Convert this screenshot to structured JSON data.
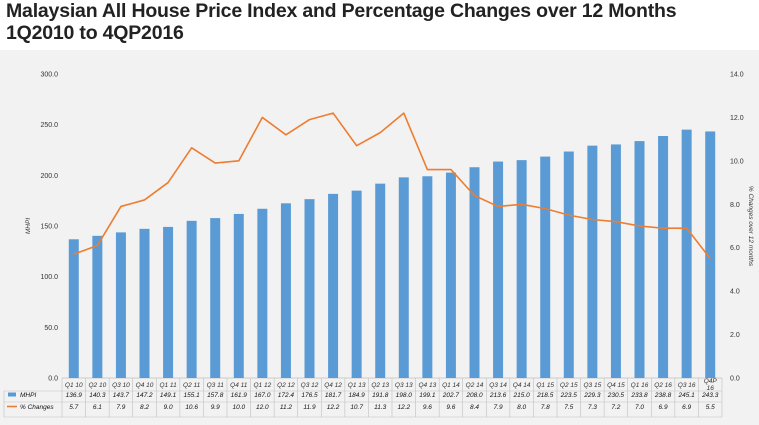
{
  "title_line1": "Malaysian All House Price Index and Percentage Changes over 12 Months",
  "title_line2": "1Q2010 to 4QP2016",
  "chart_data": {
    "type": "bar",
    "categories": [
      "Q1 10",
      "Q2 10",
      "Q3 10",
      "Q4 10",
      "Q1 11",
      "Q2 11",
      "Q3 11",
      "Q4 11",
      "Q1 12",
      "Q2 12",
      "Q3 12",
      "Q4 12",
      "Q1 13",
      "Q2 13",
      "Q3 13",
      "Q4 13",
      "Q1 14",
      "Q2 14",
      "Q3 14",
      "Q4 14",
      "Q1 15",
      "Q2 15",
      "Q3 15",
      "Q4 15",
      "Q1 16",
      "Q2 16",
      "Q3 16",
      "Q4P 16"
    ],
    "series": [
      {
        "name": "MHPI",
        "type": "bar",
        "axis": "left",
        "color": "#5b9bd5",
        "values": [
          136.9,
          140.3,
          143.7,
          147.2,
          149.1,
          155.1,
          157.8,
          161.9,
          167.0,
          172.4,
          176.5,
          181.7,
          184.9,
          191.8,
          198.0,
          199.1,
          202.7,
          208.0,
          213.6,
          215.0,
          218.5,
          223.5,
          229.3,
          230.5,
          233.8,
          238.8,
          245.1,
          243.3
        ]
      },
      {
        "name": "% Changes",
        "type": "line",
        "axis": "right",
        "color": "#ed7d31",
        "values": [
          5.7,
          6.1,
          7.9,
          8.2,
          9.0,
          10.6,
          9.9,
          10.0,
          12.0,
          11.2,
          11.9,
          12.2,
          10.7,
          11.3,
          12.2,
          9.6,
          9.6,
          8.4,
          7.9,
          8.0,
          7.8,
          7.5,
          7.3,
          7.2,
          7.0,
          6.9,
          6.9,
          5.5
        ]
      }
    ],
    "ylabel": "MHPI",
    "ylabel_right": "% Changes over 12 months",
    "ylim": [
      0,
      300
    ],
    "ylim_right": [
      0,
      14
    ],
    "yticks": [
      "0.0",
      "50.0",
      "100.0",
      "150.0",
      "200.0",
      "250.0",
      "300.0"
    ],
    "yticks_right": [
      "0.0",
      "2.0",
      "4.0",
      "6.0",
      "8.0",
      "10.0",
      "12.0",
      "14.0"
    ],
    "grid": false,
    "legend": "data-table-bottom"
  }
}
